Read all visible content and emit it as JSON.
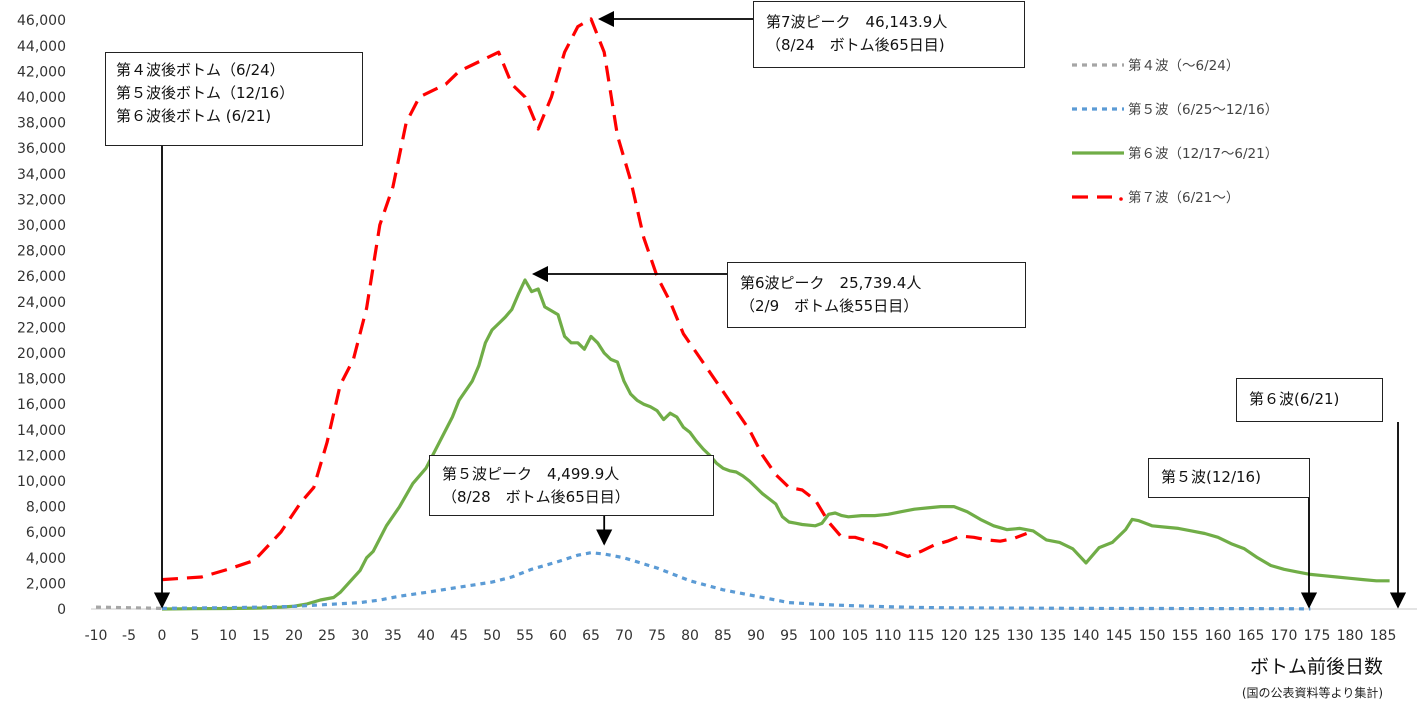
{
  "chart_data": {
    "type": "line",
    "title": "",
    "xlabel": "ボトム前後日数",
    "ylabel": "",
    "source_note": "(国の公表資料等より集計)",
    "xlim": [
      -10,
      190
    ],
    "ylim": [
      0,
      46000
    ],
    "x_ticks": [
      -10,
      -5,
      0,
      5,
      10,
      15,
      20,
      25,
      30,
      35,
      40,
      45,
      50,
      55,
      60,
      65,
      70,
      75,
      80,
      85,
      90,
      95,
      100,
      105,
      110,
      115,
      120,
      125,
      130,
      135,
      140,
      145,
      150,
      155,
      160,
      165,
      170,
      175,
      180,
      185
    ],
    "y_ticks": [
      0,
      2000,
      4000,
      6000,
      8000,
      10000,
      12000,
      14000,
      16000,
      18000,
      20000,
      22000,
      24000,
      26000,
      28000,
      30000,
      32000,
      34000,
      36000,
      38000,
      40000,
      42000,
      44000,
      46000
    ],
    "y_tick_labels": [
      "0",
      "2,000",
      "4,000",
      "6,000",
      "8,000",
      "10,000",
      "12,000",
      "14,000",
      "16,000",
      "18,000",
      "20,000",
      "22,000",
      "24,000",
      "26,000",
      "28,000",
      "30,000",
      "32,000",
      "34,000",
      "36,000",
      "38,000",
      "40,000",
      "42,000",
      "44,000",
      "46,000"
    ],
    "grid": false,
    "legend_position": "right",
    "series": [
      {
        "name": "第４波（～6/24）",
        "color": "#a6a6a6",
        "style": "dotted",
        "points": [
          [
            -10,
            150
          ],
          [
            -8,
            130
          ],
          [
            -6,
            110
          ],
          [
            -4,
            90
          ],
          [
            -2,
            70
          ],
          [
            0,
            50
          ]
        ]
      },
      {
        "name": "第５波（6/25～12/16）",
        "color": "#5b9bd5",
        "style": "dotted",
        "points": [
          [
            0,
            50
          ],
          [
            5,
            80
          ],
          [
            10,
            100
          ],
          [
            15,
            150
          ],
          [
            20,
            200
          ],
          [
            25,
            350
          ],
          [
            30,
            500
          ],
          [
            33,
            700
          ],
          [
            36,
            1000
          ],
          [
            40,
            1300
          ],
          [
            45,
            1700
          ],
          [
            50,
            2100
          ],
          [
            53,
            2500
          ],
          [
            56,
            3100
          ],
          [
            60,
            3700
          ],
          [
            63,
            4200
          ],
          [
            65,
            4400
          ],
          [
            67,
            4300
          ],
          [
            70,
            4000
          ],
          [
            75,
            3200
          ],
          [
            80,
            2200
          ],
          [
            85,
            1500
          ],
          [
            90,
            1000
          ],
          [
            95,
            500
          ],
          [
            100,
            350
          ],
          [
            105,
            250
          ],
          [
            110,
            180
          ],
          [
            115,
            120
          ],
          [
            120,
            90
          ],
          [
            130,
            70
          ],
          [
            140,
            50
          ],
          [
            150,
            40
          ],
          [
            160,
            30
          ],
          [
            170,
            20
          ],
          [
            174,
            10
          ]
        ]
      },
      {
        "name": "第６波（12/17～6/21）",
        "color": "#70ad47",
        "style": "solid",
        "points": [
          [
            0,
            0
          ],
          [
            5,
            20
          ],
          [
            10,
            40
          ],
          [
            15,
            80
          ],
          [
            18,
            150
          ],
          [
            20,
            220
          ],
          [
            22,
            400
          ],
          [
            24,
            700
          ],
          [
            26,
            900
          ],
          [
            27,
            1300
          ],
          [
            30,
            3000
          ],
          [
            31,
            4000
          ],
          [
            32,
            4500
          ],
          [
            34,
            6500
          ],
          [
            36,
            8000
          ],
          [
            38,
            9800
          ],
          [
            40,
            11000
          ],
          [
            42,
            13000
          ],
          [
            44,
            15000
          ],
          [
            45,
            16300
          ],
          [
            47,
            17800
          ],
          [
            48,
            19000
          ],
          [
            49,
            20800
          ],
          [
            50,
            21800
          ],
          [
            51,
            22300
          ],
          [
            52,
            22800
          ],
          [
            53,
            23400
          ],
          [
            54,
            24600
          ],
          [
            55,
            25700
          ],
          [
            56,
            24800
          ],
          [
            57,
            25000
          ],
          [
            58,
            23600
          ],
          [
            59,
            23300
          ],
          [
            60,
            23000
          ],
          [
            61,
            21300
          ],
          [
            62,
            20800
          ],
          [
            63,
            20800
          ],
          [
            64,
            20300
          ],
          [
            65,
            21300
          ],
          [
            66,
            20800
          ],
          [
            67,
            20000
          ],
          [
            68,
            19500
          ],
          [
            69,
            19300
          ],
          [
            70,
            17800
          ],
          [
            71,
            16800
          ],
          [
            72,
            16300
          ],
          [
            73,
            16000
          ],
          [
            74,
            15800
          ],
          [
            75,
            15500
          ],
          [
            76,
            14800
          ],
          [
            77,
            15300
          ],
          [
            78,
            15000
          ],
          [
            79,
            14200
          ],
          [
            80,
            13800
          ],
          [
            81,
            13100
          ],
          [
            82,
            12500
          ],
          [
            83,
            12000
          ],
          [
            84,
            11400
          ],
          [
            85,
            11000
          ],
          [
            86,
            10800
          ],
          [
            87,
            10700
          ],
          [
            88,
            10400
          ],
          [
            89,
            10000
          ],
          [
            90,
            9500
          ],
          [
            91,
            9000
          ],
          [
            92,
            8600
          ],
          [
            93,
            8200
          ],
          [
            94,
            7200
          ],
          [
            95,
            6800
          ],
          [
            96,
            6700
          ],
          [
            97,
            6600
          ],
          [
            99,
            6500
          ],
          [
            100,
            6700
          ],
          [
            101,
            7400
          ],
          [
            102,
            7500
          ],
          [
            103,
            7300
          ],
          [
            104,
            7200
          ],
          [
            106,
            7300
          ],
          [
            108,
            7300
          ],
          [
            110,
            7400
          ],
          [
            112,
            7600
          ],
          [
            114,
            7800
          ],
          [
            116,
            7900
          ],
          [
            118,
            8000
          ],
          [
            120,
            8000
          ],
          [
            122,
            7600
          ],
          [
            124,
            7000
          ],
          [
            126,
            6500
          ],
          [
            128,
            6200
          ],
          [
            130,
            6300
          ],
          [
            132,
            6100
          ],
          [
            134,
            5400
          ],
          [
            136,
            5200
          ],
          [
            138,
            4700
          ],
          [
            140,
            3600
          ],
          [
            142,
            4800
          ],
          [
            144,
            5200
          ],
          [
            146,
            6200
          ],
          [
            147,
            7000
          ],
          [
            148,
            6900
          ],
          [
            150,
            6500
          ],
          [
            152,
            6400
          ],
          [
            154,
            6300
          ],
          [
            156,
            6100
          ],
          [
            158,
            5900
          ],
          [
            160,
            5600
          ],
          [
            162,
            5100
          ],
          [
            164,
            4700
          ],
          [
            166,
            4000
          ],
          [
            168,
            3400
          ],
          [
            170,
            3100
          ],
          [
            172,
            2900
          ],
          [
            174,
            2700
          ],
          [
            176,
            2600
          ],
          [
            178,
            2500
          ],
          [
            180,
            2400
          ],
          [
            182,
            2300
          ],
          [
            184,
            2200
          ],
          [
            186,
            2200
          ]
        ]
      },
      {
        "name": "第７波（6/21～）",
        "color": "#ff0000",
        "style": "dashed",
        "points": [
          [
            0,
            2300
          ],
          [
            3,
            2400
          ],
          [
            6,
            2500
          ],
          [
            10,
            3100
          ],
          [
            14,
            3800
          ],
          [
            18,
            6000
          ],
          [
            21,
            8300
          ],
          [
            23,
            9500
          ],
          [
            25,
            13000
          ],
          [
            27,
            17500
          ],
          [
            29,
            19500
          ],
          [
            31,
            23500
          ],
          [
            33,
            30000
          ],
          [
            35,
            33000
          ],
          [
            37,
            38000
          ],
          [
            39,
            40000
          ],
          [
            41,
            40500
          ],
          [
            43,
            41000
          ],
          [
            45,
            42000
          ],
          [
            47,
            42500
          ],
          [
            49,
            43000
          ],
          [
            51,
            43500
          ],
          [
            53,
            41000
          ],
          [
            55,
            40000
          ],
          [
            57,
            37500
          ],
          [
            59,
            40000
          ],
          [
            61,
            43500
          ],
          [
            63,
            45500
          ],
          [
            65,
            46100
          ],
          [
            67,
            43500
          ],
          [
            69,
            37000
          ],
          [
            71,
            33500
          ],
          [
            73,
            29000
          ],
          [
            75,
            26000
          ],
          [
            77,
            24000
          ],
          [
            79,
            21500
          ],
          [
            81,
            20000
          ],
          [
            83,
            18500
          ],
          [
            85,
            17000
          ],
          [
            87,
            15500
          ],
          [
            89,
            14000
          ],
          [
            91,
            12000
          ],
          [
            93,
            10500
          ],
          [
            95,
            9500
          ],
          [
            97,
            9300
          ],
          [
            99,
            8500
          ],
          [
            101,
            6800
          ],
          [
            103,
            5600
          ],
          [
            105,
            5600
          ],
          [
            107,
            5300
          ],
          [
            109,
            5000
          ],
          [
            111,
            4500
          ],
          [
            113,
            4100
          ],
          [
            115,
            4500
          ],
          [
            117,
            5000
          ],
          [
            119,
            5300
          ],
          [
            121,
            5700
          ],
          [
            123,
            5600
          ],
          [
            125,
            5400
          ],
          [
            127,
            5300
          ],
          [
            129,
            5500
          ],
          [
            131,
            5900
          ]
        ]
      }
    ],
    "annotations": [
      {
        "lines": [
          "第４波後ボトム（6/24）",
          "第５波後ボトム（12/16）",
          "第６波後ボトム (6/21)"
        ],
        "points_to": [
          0,
          0
        ]
      },
      {
        "lines": [
          "第7波ピーク　46,143.9人",
          "（8/24　ボトム後65日目)"
        ],
        "points_to": [
          65,
          46100
        ]
      },
      {
        "lines": [
          "第6波ピーク　25,739.4人",
          "（2/9　ボトム後55日目）"
        ],
        "points_to": [
          55,
          25700
        ]
      },
      {
        "lines": [
          "第５波ピーク　4,499.9人",
          "（8/28　ボトム後65日目）"
        ],
        "points_to": [
          67,
          4400
        ]
      },
      {
        "lines": [
          "第６波(6/21)"
        ],
        "points_to": [
          190,
          0
        ]
      },
      {
        "lines": [
          "第５波(12/16)"
        ],
        "points_to": [
          174,
          0
        ]
      }
    ]
  }
}
